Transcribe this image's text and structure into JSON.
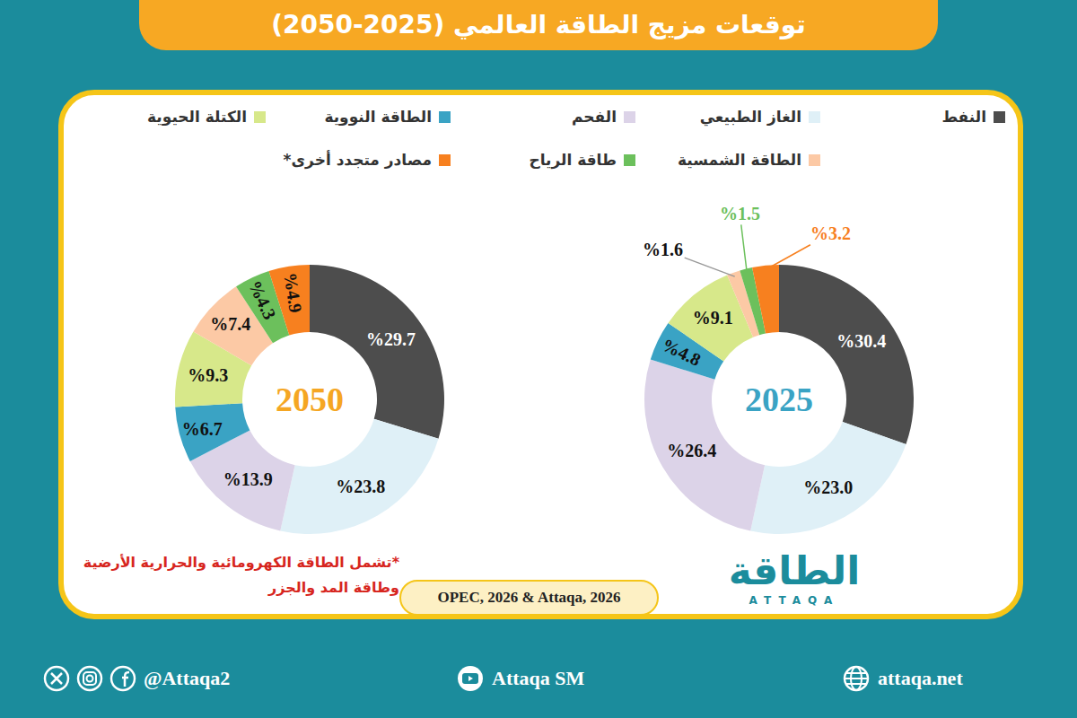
{
  "title": "توقعات مزيج الطاقة العالمي (2025-2050)",
  "chart_data": [
    {
      "type": "pie",
      "title": "2025",
      "categories": [
        "النفط",
        "الغاز الطبيعي",
        "الفحم",
        "الطاقة النووية",
        "الكتلة الحيوية",
        "الطاقة الشمسية",
        "طاقة الرياح",
        "مصادر متجدد أخرى*"
      ],
      "values": [
        30.4,
        23.0,
        26.4,
        4.8,
        9.1,
        1.6,
        1.5,
        3.2
      ],
      "value_labels": [
        "%30.4",
        "%23.0",
        "%26.4",
        "%4.8",
        "%9.1",
        "%1.6",
        "%1.5",
        "%3.2"
      ],
      "colors": [
        "#4d4d4d",
        "#dff0f7",
        "#dcd3e8",
        "#3aa3c4",
        "#d7e88a",
        "#fcc9a5",
        "#6cc05c",
        "#f7801f"
      ],
      "data_labels": true,
      "legend": "top"
    },
    {
      "type": "pie",
      "title": "2050",
      "categories": [
        "النفط",
        "الغاز الطبيعي",
        "الفحم",
        "الطاقة النووية",
        "الكتلة الحيوية",
        "الطاقة الشمسية",
        "طاقة الرياح",
        "مصادر متجدد أخرى*"
      ],
      "values": [
        29.7,
        23.8,
        13.9,
        6.7,
        9.3,
        7.4,
        4.3,
        4.9
      ],
      "value_labels": [
        "%29.7",
        "%23.8",
        "%13.9",
        "%6.7",
        "%9.3",
        "%7.4",
        "%4.3",
        "%4.9"
      ],
      "colors": [
        "#4d4d4d",
        "#dff0f7",
        "#dcd3e8",
        "#3aa3c4",
        "#d7e88a",
        "#fcc9a5",
        "#6cc05c",
        "#f7801f"
      ],
      "data_labels": true,
      "legend": "top"
    }
  ],
  "footnote": "*تشمل الطاقة الكهرومائية والحرارية الأرضية وطاقة المد والجزر",
  "source": "OPEC, 2026 & Attaqa, 2026",
  "logo": {
    "name": "الطاقة",
    "latin": "ATTAQA"
  },
  "footer": {
    "social": "@Attaqa2",
    "youtube": "Attaqa SM",
    "website": "attaqa.net"
  }
}
